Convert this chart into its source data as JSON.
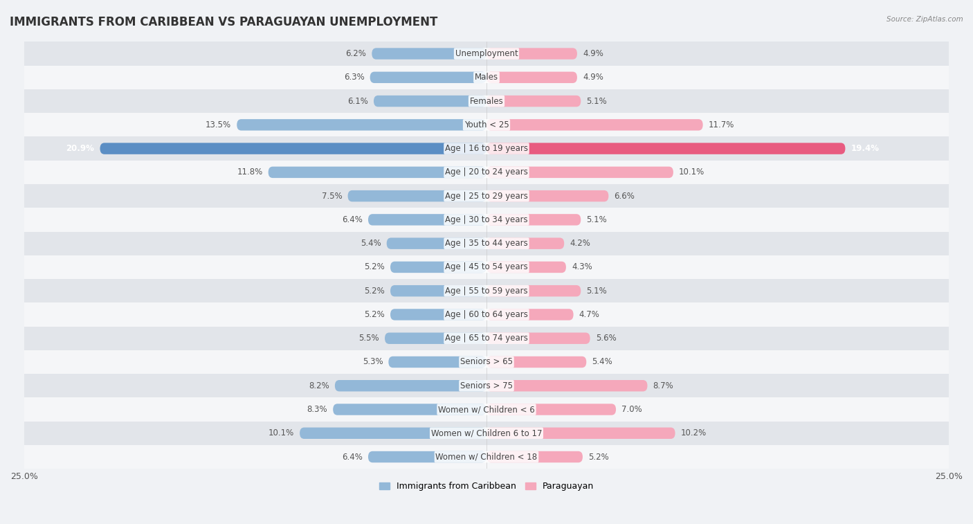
{
  "title": "IMMIGRANTS FROM CARIBBEAN VS PARAGUAYAN UNEMPLOYMENT",
  "source": "Source: ZipAtlas.com",
  "categories": [
    "Unemployment",
    "Males",
    "Females",
    "Youth < 25",
    "Age | 16 to 19 years",
    "Age | 20 to 24 years",
    "Age | 25 to 29 years",
    "Age | 30 to 34 years",
    "Age | 35 to 44 years",
    "Age | 45 to 54 years",
    "Age | 55 to 59 years",
    "Age | 60 to 64 years",
    "Age | 65 to 74 years",
    "Seniors > 65",
    "Seniors > 75",
    "Women w/ Children < 6",
    "Women w/ Children 6 to 17",
    "Women w/ Children < 18"
  ],
  "caribbean_values": [
    6.2,
    6.3,
    6.1,
    13.5,
    20.9,
    11.8,
    7.5,
    6.4,
    5.4,
    5.2,
    5.2,
    5.2,
    5.5,
    5.3,
    8.2,
    8.3,
    10.1,
    6.4
  ],
  "paraguayan_values": [
    4.9,
    4.9,
    5.1,
    11.7,
    19.4,
    10.1,
    6.6,
    5.1,
    4.2,
    4.3,
    5.1,
    4.7,
    5.6,
    5.4,
    8.7,
    7.0,
    10.2,
    5.2
  ],
  "caribbean_color": "#93b8d8",
  "paraguayan_color": "#f5a8bb",
  "caribbean_color_highlight": "#5b8ec4",
  "paraguayan_color_highlight": "#e85b80",
  "highlight_row": 4,
  "axis_limit": 25.0,
  "bg_color": "#f0f2f5",
  "row_bg_even": "#f5f6f8",
  "row_bg_odd": "#e2e5ea",
  "legend_label_caribbean": "Immigrants from Caribbean",
  "legend_label_paraguayan": "Paraguayan",
  "title_fontsize": 12,
  "label_fontsize": 8.5,
  "bar_height": 0.48
}
